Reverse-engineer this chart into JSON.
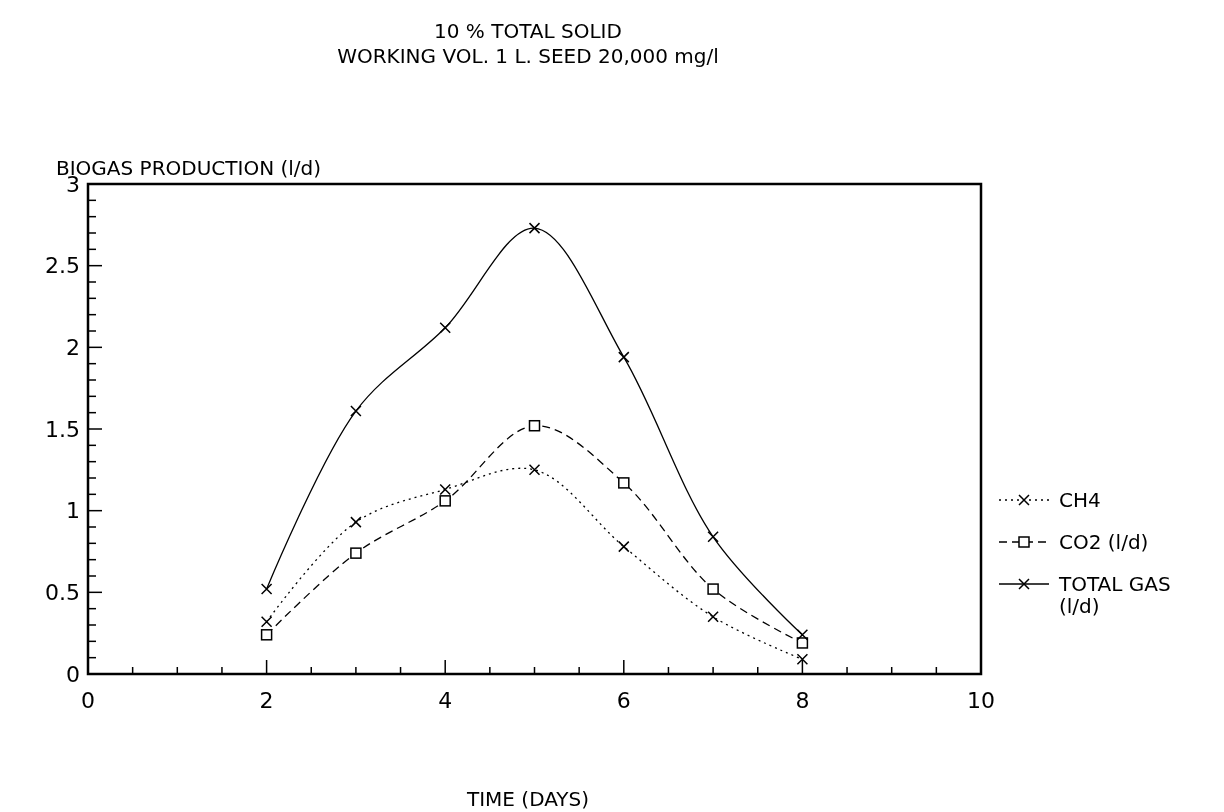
{
  "chart_data": {
    "type": "line",
    "title": "10 % TOTAL SOLID",
    "subtitle": "WORKING VOL. 1 L. SEED 20,000 mg/l",
    "ylabel": "BIOGAS PRODUCTION (l/d)",
    "xlabel": "TIME (DAYS)",
    "x": [
      2,
      3,
      4,
      5,
      6,
      7,
      8
    ],
    "series": [
      {
        "name": "CH4",
        "color": "#000000",
        "line_style": "dotted",
        "marker": "cross",
        "values": [
          0.32,
          0.93,
          1.13,
          1.25,
          0.78,
          0.35,
          0.09
        ]
      },
      {
        "name": "CO2 (l/d)",
        "color": "#000000",
        "line_style": "dashed",
        "marker": "square",
        "values": [
          0.24,
          0.74,
          1.06,
          1.52,
          1.17,
          0.52,
          0.19
        ]
      },
      {
        "name": "TOTAL GAS (l/d)",
        "color": "#000000",
        "line_style": "solid",
        "marker": "cross",
        "values": [
          0.52,
          1.61,
          2.12,
          2.73,
          1.94,
          0.84,
          0.24
        ]
      }
    ],
    "xlim": [
      0,
      10
    ],
    "xticks": [
      0,
      {
        "value": 0.5,
        "label": null
      },
      {
        "value": 1,
        "label": null
      },
      {
        "value": 1.5,
        "label": null
      },
      2,
      {
        "value": 2.5,
        "label": null
      },
      {
        "value": 3,
        "label": null
      },
      {
        "value": 3.5,
        "label": null
      },
      4,
      {
        "value": 4.5,
        "label": null
      },
      {
        "value": 5,
        "label": null
      },
      {
        "value": 5.5,
        "label": null
      },
      6,
      {
        "value": 6.5,
        "label": null
      },
      {
        "value": 7,
        "label": null
      },
      {
        "value": 7.5,
        "label": null
      },
      8,
      {
        "value": 8.5,
        "label": null
      },
      {
        "value": 9,
        "label": null
      },
      {
        "value": 9.5,
        "label": null
      },
      10
    ],
    "ylim": [
      0,
      3
    ],
    "yticks": [
      0,
      {
        "value": 0.1,
        "label": null
      },
      {
        "value": 0.2,
        "label": null
      },
      {
        "value": 0.3,
        "label": null
      },
      {
        "value": 0.4,
        "label": null
      },
      0.5,
      {
        "value": 0.6,
        "label": null
      },
      {
        "value": 0.7,
        "label": null
      },
      {
        "value": 0.8,
        "label": null
      },
      {
        "value": 0.9,
        "label": null
      },
      1,
      {
        "value": 1.1,
        "label": null
      },
      {
        "value": 1.2,
        "label": null
      },
      {
        "value": 1.3,
        "label": null
      },
      {
        "value": 1.4,
        "label": null
      },
      1.5,
      {
        "value": 1.6,
        "label": null
      },
      {
        "value": 1.7,
        "label": null
      },
      {
        "value": 1.8,
        "label": null
      },
      {
        "value": 1.9,
        "label": null
      },
      2,
      {
        "value": 2.1,
        "label": null
      },
      {
        "value": 2.2,
        "label": null
      },
      {
        "value": 2.3,
        "label": null
      },
      {
        "value": 2.4,
        "label": null
      },
      2.5,
      {
        "value": 2.6,
        "label": null
      },
      {
        "value": 2.7,
        "label": null
      },
      {
        "value": 2.8,
        "label": null
      },
      {
        "value": 2.9,
        "label": null
      },
      3
    ],
    "grid": false,
    "legend": "right"
  }
}
